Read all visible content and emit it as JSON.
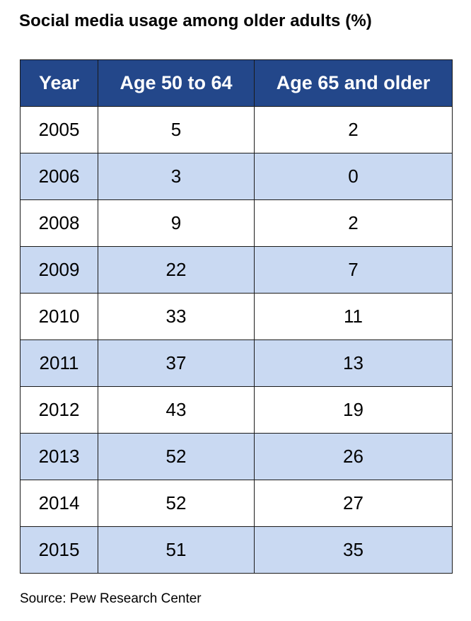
{
  "title": "Social media usage among older adults (%)",
  "source": "Source: Pew Research Center",
  "colors": {
    "header_bg": "#23478a",
    "header_text": "#ffffff",
    "stripe": "#c9d9f2",
    "row_bg": "#ffffff",
    "border": "#1a1a1a"
  },
  "chart_data": {
    "type": "table",
    "title": "Social media usage among older adults (%)",
    "columns": [
      "Year",
      "Age 50 to 64",
      "Age 65 and older"
    ],
    "rows": [
      [
        "2005",
        "5",
        "2"
      ],
      [
        "2006",
        "3",
        "0"
      ],
      [
        "2008",
        "9",
        "2"
      ],
      [
        "2009",
        "22",
        "7"
      ],
      [
        "2010",
        "33",
        "11"
      ],
      [
        "2011",
        "37",
        "13"
      ],
      [
        "2012",
        "43",
        "19"
      ],
      [
        "2013",
        "52",
        "26"
      ],
      [
        "2014",
        "52",
        "27"
      ],
      [
        "2015",
        "51",
        "35"
      ]
    ]
  }
}
